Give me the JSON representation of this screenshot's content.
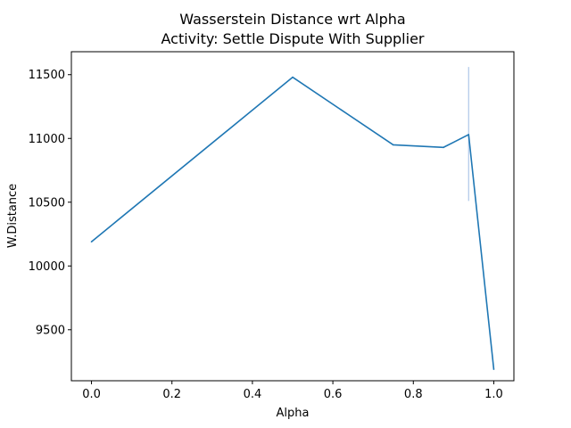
{
  "chart_data": {
    "type": "line",
    "title": "Wasserstein Distance wrt Alpha",
    "subtitle": "Activity: Settle Dispute With Supplier",
    "xlabel": "Alpha",
    "ylabel": "W.Distance",
    "xlim": [
      -0.05,
      1.05
    ],
    "ylim": [
      9100,
      11680
    ],
    "xticks": [
      0.0,
      0.2,
      0.4,
      0.6,
      0.8,
      1.0
    ],
    "xtick_labels": [
      "0.0",
      "0.2",
      "0.4",
      "0.6",
      "0.8",
      "1.0"
    ],
    "yticks": [
      9500,
      10000,
      10500,
      11000,
      11500
    ],
    "ytick_labels": [
      "9500",
      "10000",
      "10500",
      "11000",
      "11500"
    ],
    "grid": false,
    "line_color": "#1f77b4",
    "band_color": "#aec7e8",
    "series": [
      {
        "x": [
          0.0,
          0.5,
          0.75,
          0.875,
          0.9375,
          1.0
        ],
        "y": [
          10190,
          11480,
          10950,
          10930,
          11030,
          9190
        ],
        "ci_at_x": 0.9375,
        "ci_range": [
          10510,
          11560
        ]
      }
    ]
  }
}
